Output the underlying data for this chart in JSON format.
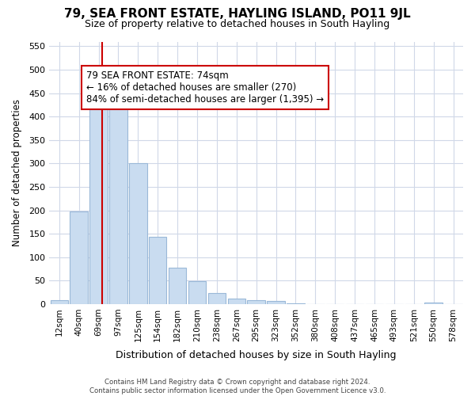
{
  "title": "79, SEA FRONT ESTATE, HAYLING ISLAND, PO11 9JL",
  "subtitle": "Size of property relative to detached houses in South Hayling",
  "xlabel": "Distribution of detached houses by size in South Hayling",
  "ylabel": "Number of detached properties",
  "categories": [
    "12sqm",
    "40sqm",
    "69sqm",
    "97sqm",
    "125sqm",
    "154sqm",
    "182sqm",
    "210sqm",
    "238sqm",
    "267sqm",
    "295sqm",
    "323sqm",
    "352sqm",
    "380sqm",
    "408sqm",
    "437sqm",
    "465sqm",
    "493sqm",
    "521sqm",
    "550sqm",
    "578sqm"
  ],
  "values": [
    8,
    198,
    420,
    422,
    300,
    143,
    77,
    48,
    23,
    11,
    8,
    6,
    1,
    0,
    0,
    0,
    0,
    0,
    0,
    3,
    0
  ],
  "bar_color": "#c9dcf0",
  "bar_edge_color": "#9ab8d8",
  "vline_color": "#cc0000",
  "annotation_line1": "79 SEA FRONT ESTATE: 74sqm",
  "annotation_line2": "← 16% of detached houses are smaller (270)",
  "annotation_line3": "84% of semi-detached houses are larger (1,395) →",
  "annotation_box_facecolor": "#ffffff",
  "annotation_box_edgecolor": "#cc0000",
  "ylim": [
    0,
    560
  ],
  "yticks": [
    0,
    50,
    100,
    150,
    200,
    250,
    300,
    350,
    400,
    450,
    500,
    550
  ],
  "footnote": "Contains HM Land Registry data © Crown copyright and database right 2024.\nContains public sector information licensed under the Open Government Licence v3.0.",
  "bg_color": "#ffffff",
  "plot_bg": "#ffffff",
  "grid_color": "#d0d8e8"
}
